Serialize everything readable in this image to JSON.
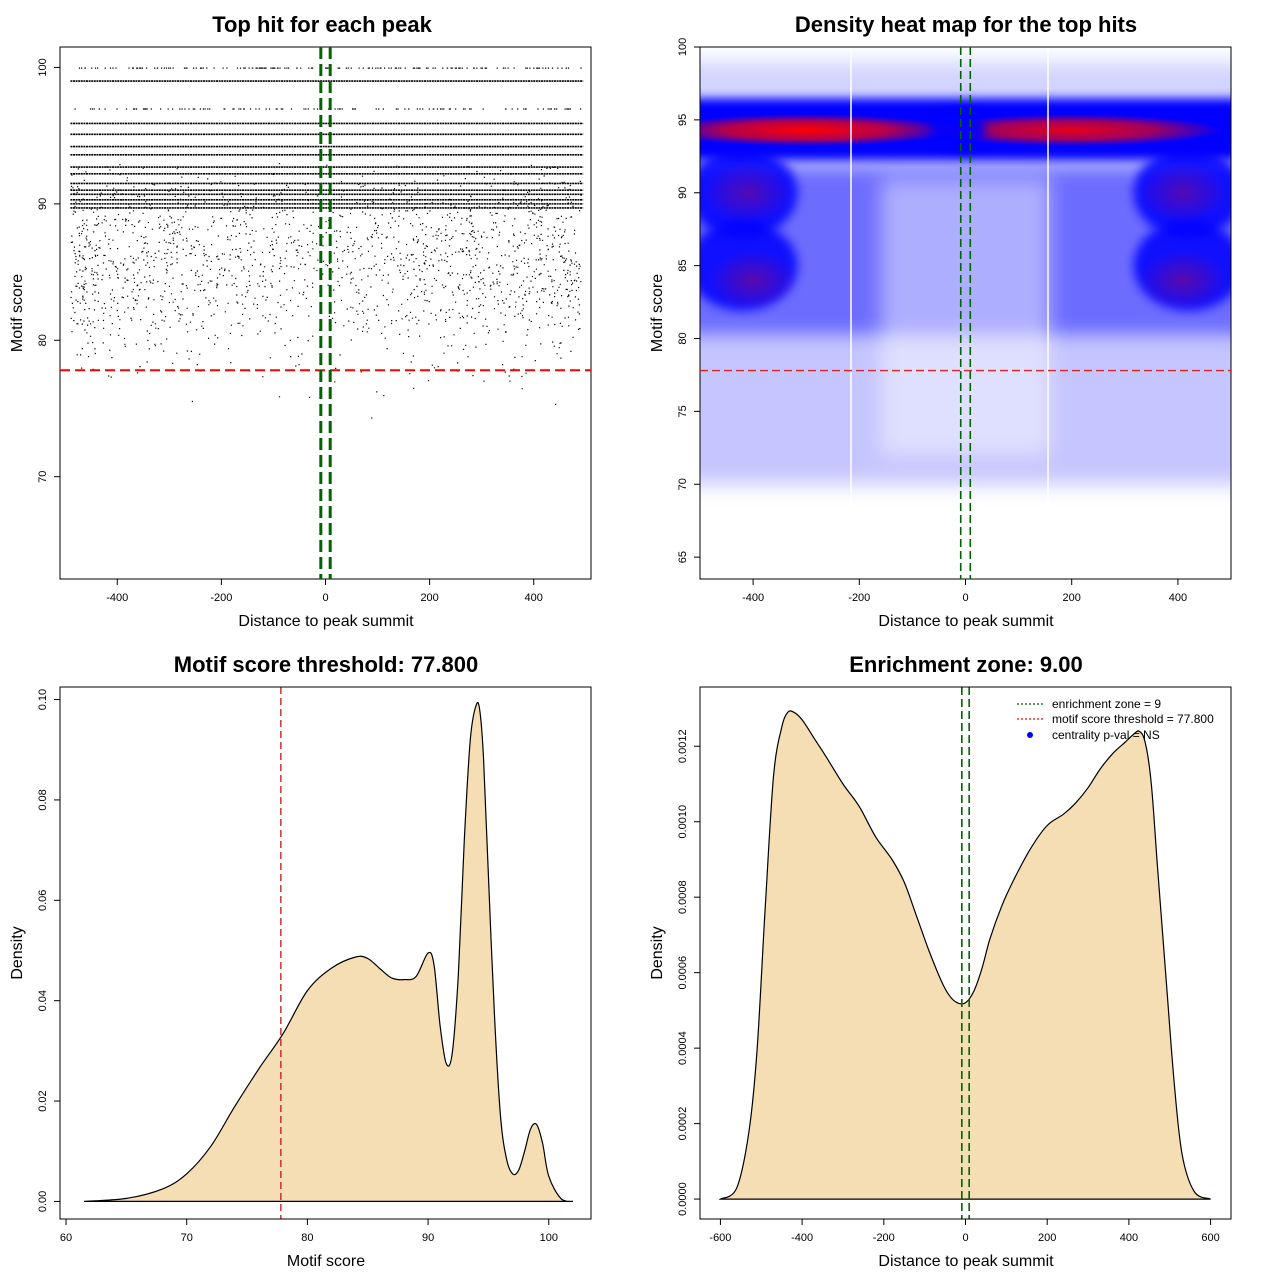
{
  "chart_data": [
    {
      "type": "scatter",
      "title": "Top hit for each peak",
      "xlabel": "Distance to peak summit",
      "ylabel": "Motif score",
      "xlim": [
        -510,
        510
      ],
      "ylim": [
        62.5,
        101.5
      ],
      "xticks": [
        "-400",
        "-200",
        "0",
        "200",
        "400"
      ],
      "yticks": [
        "70",
        "80",
        "90",
        "100"
      ],
      "score_levels": [
        99.0,
        95.9,
        95.1,
        94.2,
        93.6,
        92.7,
        92.2,
        91.5,
        91.0,
        90.7,
        90.3,
        90.0,
        89.7
      ],
      "thresholds": {
        "motif_score": 77.8,
        "enrichment_zone": [
          -9,
          9
        ]
      },
      "colors": {
        "points": "#000000",
        "zone": "#006400",
        "threshold": "#ff0000"
      }
    },
    {
      "type": "heatmap",
      "title": "Density heat map for the top hits",
      "xlabel": "Distance to peak summit",
      "ylabel": "Motif score",
      "xlim": [
        -500,
        500
      ],
      "ylim": [
        63.5,
        100
      ],
      "xticks": [
        "-400",
        "-200",
        "0",
        "200",
        "400"
      ],
      "yticks": [
        "65",
        "70",
        "75",
        "80",
        "85",
        "90",
        "95",
        "100"
      ],
      "hotspots": [
        {
          "x": -300,
          "y": 94.3,
          "intensity": 1.0
        },
        {
          "x": 200,
          "y": 94.3,
          "intensity": 0.9
        },
        {
          "x": -410,
          "y": 90.0,
          "intensity": 0.55
        },
        {
          "x": 410,
          "y": 90.0,
          "intensity": 0.55
        },
        {
          "x": -400,
          "y": 84.0,
          "intensity": 0.6
        },
        {
          "x": 410,
          "y": 84.0,
          "intensity": 0.6
        }
      ],
      "thresholds": {
        "motif_score": 77.8,
        "enrichment_zone": [
          -9,
          9
        ]
      },
      "colors": {
        "low": "#ffffff",
        "mid": "#0000ff",
        "high": "#ff0000"
      }
    },
    {
      "type": "area",
      "title": "Motif score threshold: 77.800",
      "xlabel": "Motif score",
      "ylabel": "Density",
      "xlim": [
        59.5,
        103.5
      ],
      "ylim": [
        -0.0035,
        0.1025
      ],
      "xticks": [
        "60",
        "70",
        "80",
        "90",
        "100"
      ],
      "yticks": [
        "0.00",
        "0.02",
        "0.04",
        "0.06",
        "0.08",
        "0.10"
      ],
      "x": [
        61.5,
        65,
        68,
        70,
        72,
        74,
        76,
        78,
        80,
        82,
        84,
        85,
        86,
        87,
        88,
        89,
        90,
        90.5,
        91,
        91.5,
        92,
        92.5,
        93,
        93.5,
        94,
        94.3,
        94.6,
        95,
        95.5,
        96,
        96.5,
        97,
        97.5,
        98,
        98.5,
        99,
        99.5,
        100,
        101,
        102
      ],
      "y": [
        0.0,
        0.0006,
        0.0025,
        0.0055,
        0.011,
        0.019,
        0.0265,
        0.0335,
        0.042,
        0.0465,
        0.0487,
        0.0484,
        0.0464,
        0.0445,
        0.0442,
        0.0448,
        0.0495,
        0.047,
        0.035,
        0.0275,
        0.0295,
        0.045,
        0.072,
        0.092,
        0.099,
        0.0975,
        0.088,
        0.065,
        0.037,
        0.017,
        0.0085,
        0.0055,
        0.0062,
        0.01,
        0.0145,
        0.0153,
        0.0115,
        0.005,
        0.0006,
        0.0
      ],
      "thresholds": {
        "motif_score": 77.8
      },
      "colors": {
        "fill": "#f5deb3",
        "threshold": "#cc2222"
      }
    },
    {
      "type": "area",
      "title": "Enrichment zone: 9.00",
      "xlabel": "Distance to peak summit",
      "ylabel": "Density",
      "xlim": [
        -650,
        650
      ],
      "ylim": [
        -5.28e-05,
        0.001357
      ],
      "xticks": [
        "-600",
        "-400",
        "-200",
        "0",
        "200",
        "400",
        "600"
      ],
      "yticks": [
        "0.0000",
        "0.0002",
        "0.0004",
        "0.0006",
        "0.0008",
        "0.0010",
        "0.0012"
      ],
      "x": [
        -600,
        -560,
        -530,
        -510,
        -490,
        -470,
        -450,
        -435,
        -420,
        -400,
        -370,
        -340,
        -300,
        -260,
        -220,
        -180,
        -150,
        -120,
        -90,
        -60,
        -40,
        -20,
        0,
        20,
        40,
        60,
        90,
        120,
        160,
        200,
        240,
        270,
        300,
        330,
        360,
        390,
        410,
        425,
        440,
        455,
        470,
        490,
        510,
        530,
        560,
        600
      ],
      "y": [
        0.0,
        3e-05,
        0.00018,
        0.0004,
        0.00078,
        0.00112,
        0.00125,
        0.00129,
        0.00129,
        0.00127,
        0.00122,
        0.00117,
        0.0011,
        0.00104,
        0.00096,
        0.0009,
        0.00084,
        0.00075,
        0.00066,
        0.00058,
        0.00054,
        0.00052,
        0.00052,
        0.00055,
        0.00061,
        0.00069,
        0.00078,
        0.00085,
        0.00093,
        0.00099,
        0.00102,
        0.00105,
        0.00109,
        0.00114,
        0.00118,
        0.00121,
        0.00123,
        0.00124,
        0.00121,
        0.0011,
        0.00088,
        0.0006,
        0.00032,
        0.00012,
        2e-05,
        0.0
      ],
      "thresholds": {
        "enrichment_zone": [
          -9,
          9
        ]
      },
      "legend": {
        "placement": "top-right",
        "items": [
          {
            "label": "enrichment zone = 9",
            "style": "dotted",
            "color": "#006400"
          },
          {
            "label": "motif score threshold = 77.800",
            "style": "dotted",
            "color": "#ff0000"
          },
          {
            "label": "centrality p-val = NS",
            "style": "point",
            "color": "#0000ff"
          }
        ]
      },
      "colors": {
        "fill": "#f5deb3",
        "zone": "#006400"
      }
    }
  ]
}
